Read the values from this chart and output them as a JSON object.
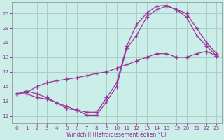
{
  "xlabel": "Windchill (Refroidissement éolien,°C)",
  "bg_color": "#cceee8",
  "line_color": "#993399",
  "grid_color": "#aacccc",
  "xtick_labels": [
    "0",
    "1",
    "2",
    "3",
    "4",
    "5",
    "6",
    "7",
    "8",
    "9",
    "10",
    "11",
    "12",
    "13",
    "14",
    "15",
    "19",
    "20",
    "21",
    "22",
    "23"
  ],
  "ytick_labels": [
    "11",
    "13",
    "15",
    "17",
    "19",
    "21",
    "23",
    "25"
  ],
  "ytick_vals": [
    11,
    13,
    15,
    17,
    19,
    21,
    23,
    25
  ],
  "ylim": [
    10.0,
    26.5
  ],
  "line1_pos": [
    0,
    1,
    2,
    3,
    4,
    5,
    6,
    7,
    8,
    9,
    10,
    11,
    12,
    13,
    14,
    15,
    16,
    17,
    18,
    19,
    20
  ],
  "line1_y": [
    14.0,
    14.4,
    14.0,
    13.5,
    12.8,
    12.0,
    11.8,
    11.1,
    11.1,
    13.0,
    15.0,
    20.2,
    22.0,
    24.5,
    25.5,
    26.0,
    25.5,
    24.5,
    22.0,
    20.5,
    19.2
  ],
  "line2_pos": [
    0,
    1,
    2,
    3,
    4,
    5,
    6,
    7,
    8,
    9,
    10,
    11,
    12,
    13,
    14,
    15,
    16,
    17,
    18,
    19,
    20
  ],
  "line2_y": [
    14.0,
    14.2,
    15.0,
    15.5,
    15.8,
    16.0,
    16.2,
    16.5,
    16.8,
    17.0,
    17.5,
    18.0,
    18.5,
    19.0,
    19.5,
    19.5,
    19.0,
    19.0,
    19.5,
    19.8,
    19.2
  ],
  "line3_pos": [
    0,
    1,
    2,
    3,
    4,
    5,
    6,
    7,
    8,
    9,
    10,
    11,
    12,
    13,
    14,
    15,
    16,
    17,
    18,
    19,
    20
  ],
  "line3_y": [
    14.0,
    14.0,
    13.5,
    13.3,
    12.8,
    12.3,
    11.8,
    11.5,
    11.5,
    13.5,
    15.5,
    20.5,
    23.5,
    25.0,
    26.0,
    26.1,
    25.5,
    25.0,
    23.0,
    21.0,
    19.5
  ]
}
